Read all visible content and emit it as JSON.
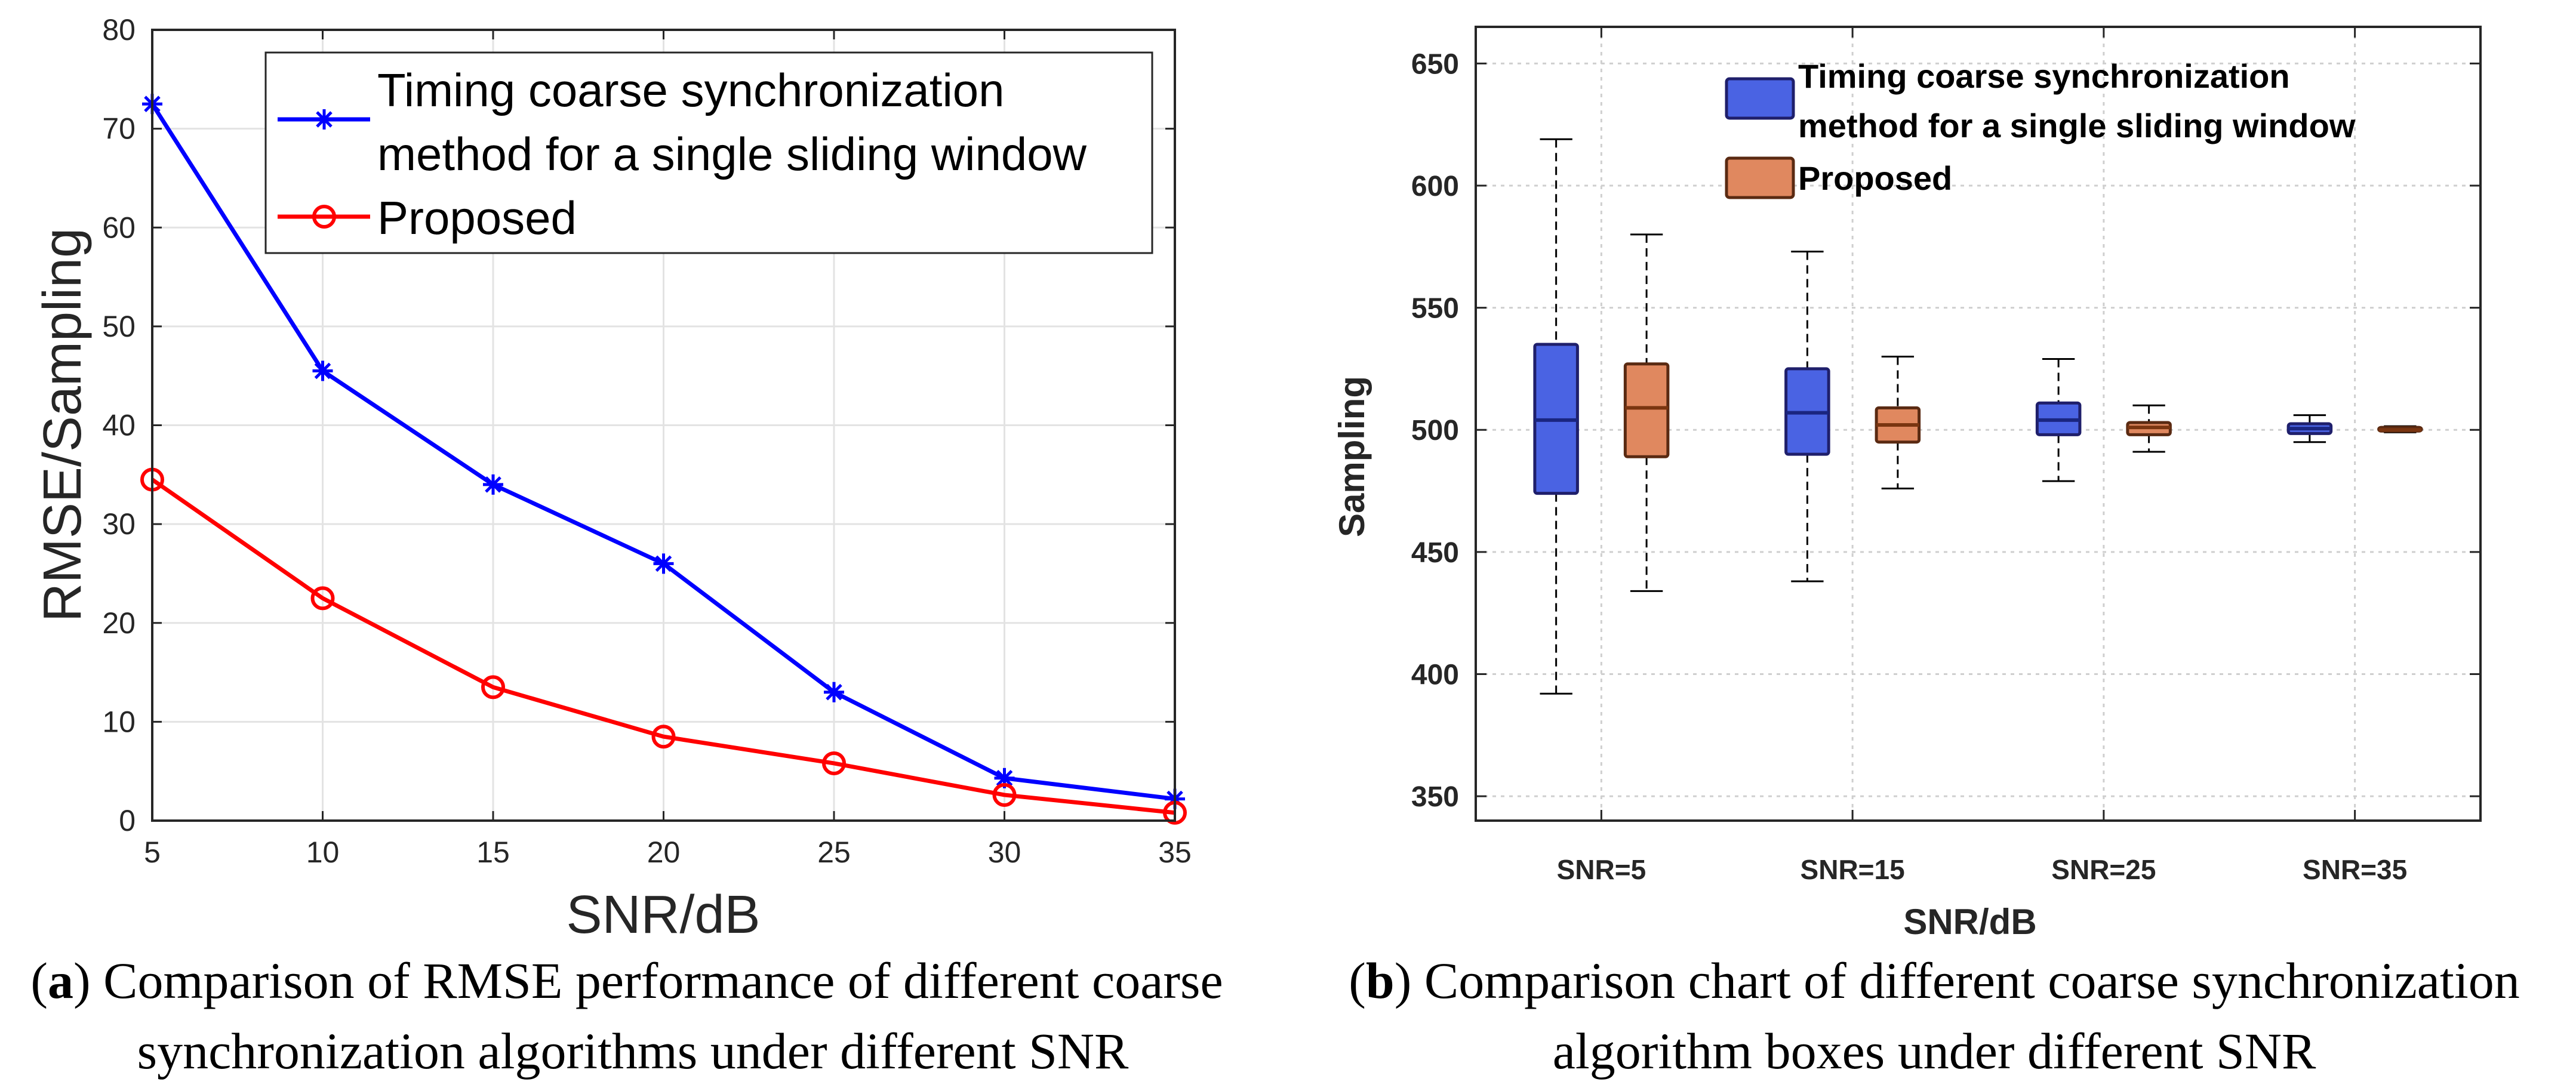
{
  "chart_data": [
    {
      "type": "line",
      "title": "",
      "xlabel": "SNR/dB",
      "ylabel": "RMSE/Sampling",
      "x": [
        5,
        10,
        15,
        20,
        25,
        30,
        35
      ],
      "xlim": [
        5,
        35
      ],
      "ylim": [
        0,
        80
      ],
      "xticks": [
        "5",
        "10",
        "15",
        "20",
        "25",
        "30",
        "35"
      ],
      "yticks": [
        "0",
        "10",
        "20",
        "30",
        "40",
        "50",
        "60",
        "70",
        "80"
      ],
      "grid": true,
      "legend_position": "top-right",
      "series": [
        {
          "name": "Timing coarse synchronization method for a single sliding window",
          "legend_lines": [
            "Timing coarse synchronization",
            "method for a single sliding window"
          ],
          "marker": "asterisk",
          "color": "#0000ff",
          "values": [
            72.5,
            45.5,
            34.0,
            26.0,
            13.0,
            4.3,
            2.2
          ]
        },
        {
          "name": "Proposed",
          "legend_lines": [
            "Proposed"
          ],
          "marker": "circle",
          "color": "#ff0000",
          "values": [
            34.5,
            22.5,
            13.5,
            8.5,
            5.8,
            2.6,
            0.8
          ]
        }
      ],
      "caption": {
        "label": "a",
        "lines": [
          "Comparison of RMSE performance of different coarse",
          "synchronization algorithms under different SNR"
        ]
      }
    },
    {
      "type": "box",
      "title": "",
      "xlabel": "SNR/dB",
      "ylabel": "Sampling",
      "categories": [
        "SNR=5",
        "SNR=15",
        "SNR=25",
        "SNR=35"
      ],
      "ylim": [
        340,
        665
      ],
      "yticks": [
        "350",
        "400",
        "450",
        "500",
        "550",
        "600",
        "650"
      ],
      "grid": true,
      "legend_position": "top-right",
      "series": [
        {
          "name": "Timing coarse synchronization method for a single sliding window",
          "legend_lines": [
            "Timing coarse synchronization",
            "method for a single sliding window"
          ],
          "color": "#4a63e3",
          "edge_color": "#1f1f6b",
          "median_color": "#1a2580",
          "boxes": [
            {
              "min": 392,
              "q1": 474,
              "median": 504,
              "q3": 535,
              "max": 619
            },
            {
              "min": 438,
              "q1": 490,
              "median": 507,
              "q3": 525,
              "max": 573
            },
            {
              "min": 479,
              "q1": 498,
              "median": 504,
              "q3": 511,
              "max": 529
            },
            {
              "min": 495,
              "q1": 498.5,
              "median": 500.5,
              "q3": 502.5,
              "max": 506
            }
          ]
        },
        {
          "name": "Proposed",
          "legend_lines": [
            "Proposed"
          ],
          "color": "#e0885f",
          "edge_color": "#5a2a12",
          "median_color": "#7a3510",
          "boxes": [
            {
              "min": 434,
              "q1": 489,
              "median": 509,
              "q3": 527,
              "max": 580
            },
            {
              "min": 476,
              "q1": 495,
              "median": 502,
              "q3": 509,
              "max": 530
            },
            {
              "min": 491,
              "q1": 498,
              "median": 501,
              "q3": 503,
              "max": 510
            },
            {
              "min": 499,
              "q1": 499.5,
              "median": 500,
              "q3": 501,
              "max": 501.5
            }
          ]
        }
      ],
      "caption": {
        "label": "b",
        "lines": [
          "Comparison chart of different coarse synchronization",
          "algorithm boxes under different SNR"
        ]
      }
    }
  ]
}
